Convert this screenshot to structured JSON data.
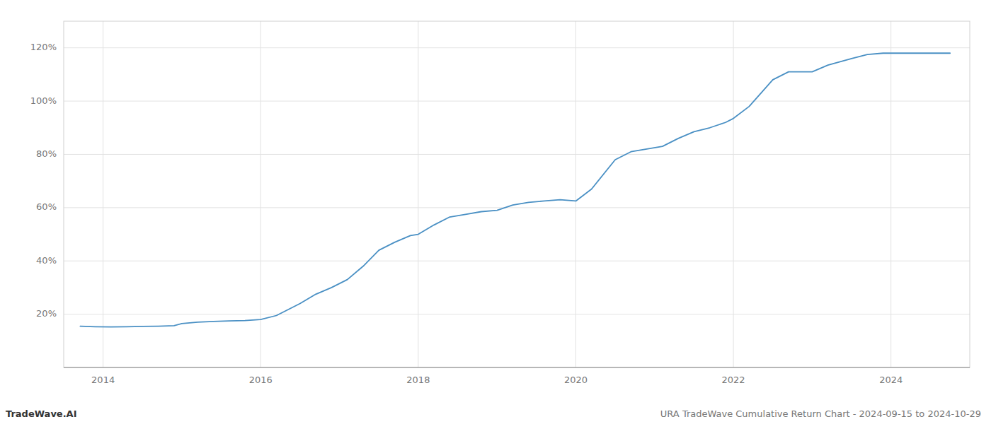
{
  "chart_data": {
    "type": "line",
    "title": "URA TradeWave Cumulative Return Chart - 2024-09-15 to 2024-10-29",
    "annotations": [
      "TradeWave.AI"
    ],
    "color": "#4a90c4",
    "grid": true,
    "x": [
      2013.71,
      2013.9,
      2014.1,
      2014.3,
      2014.5,
      2014.7,
      2014.9,
      2015.0,
      2015.2,
      2015.4,
      2015.6,
      2015.8,
      2016.0,
      2016.2,
      2016.5,
      2016.7,
      2016.9,
      2017.1,
      2017.3,
      2017.5,
      2017.7,
      2017.9,
      2018.0,
      2018.2,
      2018.4,
      2018.6,
      2018.8,
      2019.0,
      2019.2,
      2019.4,
      2019.6,
      2019.8,
      2020.0,
      2020.2,
      2020.5,
      2020.7,
      2020.9,
      2021.1,
      2021.3,
      2021.5,
      2021.7,
      2021.9,
      2022.0,
      2022.2,
      2022.5,
      2022.7,
      2023.0,
      2023.2,
      2023.5,
      2023.7,
      2023.9,
      2024.0,
      2024.5,
      2024.75
    ],
    "values": [
      15.5,
      15.3,
      15.2,
      15.3,
      15.4,
      15.5,
      15.7,
      16.5,
      17.0,
      17.3,
      17.5,
      17.6,
      18.0,
      19.5,
      24.0,
      27.5,
      30.0,
      33.0,
      38.0,
      44.0,
      47.0,
      49.5,
      50.0,
      53.5,
      56.5,
      57.5,
      58.5,
      59.0,
      61.0,
      62.0,
      62.5,
      63.0,
      62.5,
      67.0,
      78.0,
      81.0,
      82.0,
      83.0,
      86.0,
      88.5,
      90.0,
      92.0,
      93.5,
      98.0,
      108.0,
      111.0,
      111.0,
      113.5,
      116.0,
      117.5,
      118.0,
      118.0,
      118.0,
      118.0
    ],
    "xlim": [
      2013.5,
      2025.0
    ],
    "ylim": [
      0,
      130
    ],
    "xticks": [
      2014,
      2016,
      2018,
      2020,
      2022,
      2024
    ],
    "yticks": [
      {
        "value": 20,
        "label": "20%"
      },
      {
        "value": 40,
        "label": "40%"
      },
      {
        "value": 60,
        "label": "60%"
      },
      {
        "value": 80,
        "label": "80%"
      },
      {
        "value": 100,
        "label": "100%"
      },
      {
        "value": 120,
        "label": "120%"
      }
    ]
  }
}
